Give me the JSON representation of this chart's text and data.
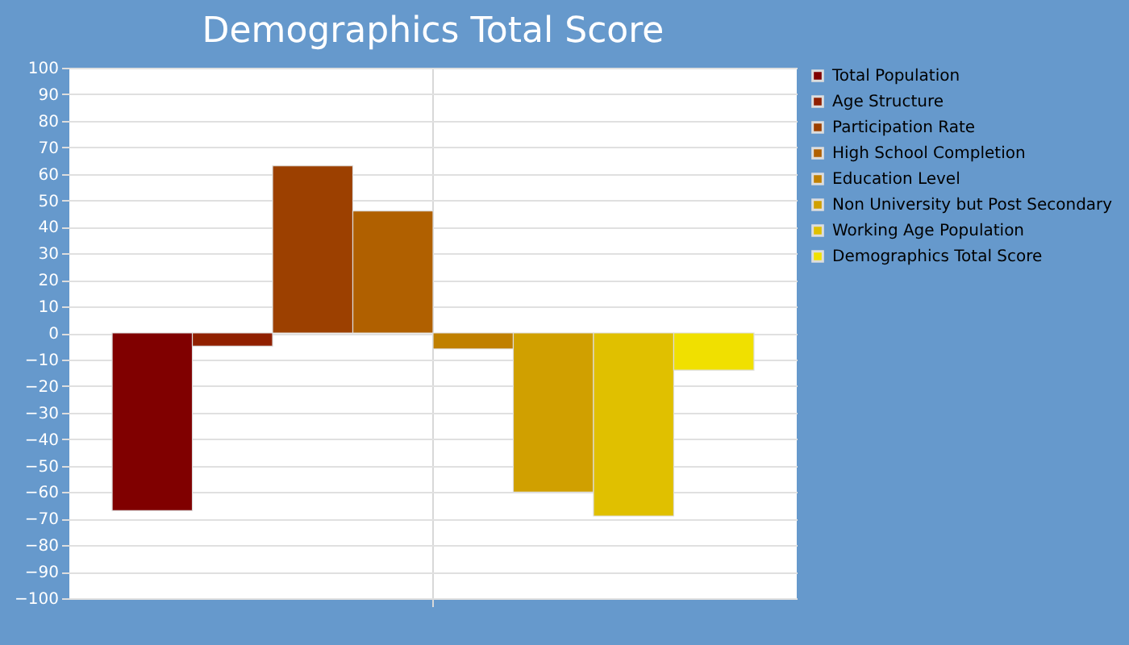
{
  "chart_data": {
    "type": "bar",
    "title": "Demographics Total Score",
    "categories": [
      null
    ],
    "series": [
      {
        "name": "Total Population",
        "color": "#800000",
        "values": [
          -67
        ]
      },
      {
        "name": "Age Structure",
        "color": "#902000",
        "values": [
          -5
        ]
      },
      {
        "name": "Participation Rate",
        "color": "#9c4000",
        "values": [
          63
        ]
      },
      {
        "name": "High School Completion",
        "color": "#b06000",
        "values": [
          46
        ]
      },
      {
        "name": "Education Level",
        "color": "#c08000",
        "values": [
          -6
        ]
      },
      {
        "name": "Non University but Post Secondary",
        "color": "#d0a000",
        "values": [
          -60
        ]
      },
      {
        "name": "Working Age Population",
        "color": "#e0c000",
        "values": [
          -69
        ]
      },
      {
        "name": "Demographics Total Score",
        "color": "#f0e000",
        "values": [
          -14
        ]
      }
    ],
    "ylim": [
      -100,
      100
    ],
    "yticks": [
      -100,
      -90,
      -80,
      -70,
      -60,
      -50,
      -40,
      -30,
      -20,
      -10,
      0,
      10,
      20,
      30,
      40,
      50,
      60,
      70,
      80,
      90,
      100
    ],
    "grid": true,
    "legend": "right"
  }
}
